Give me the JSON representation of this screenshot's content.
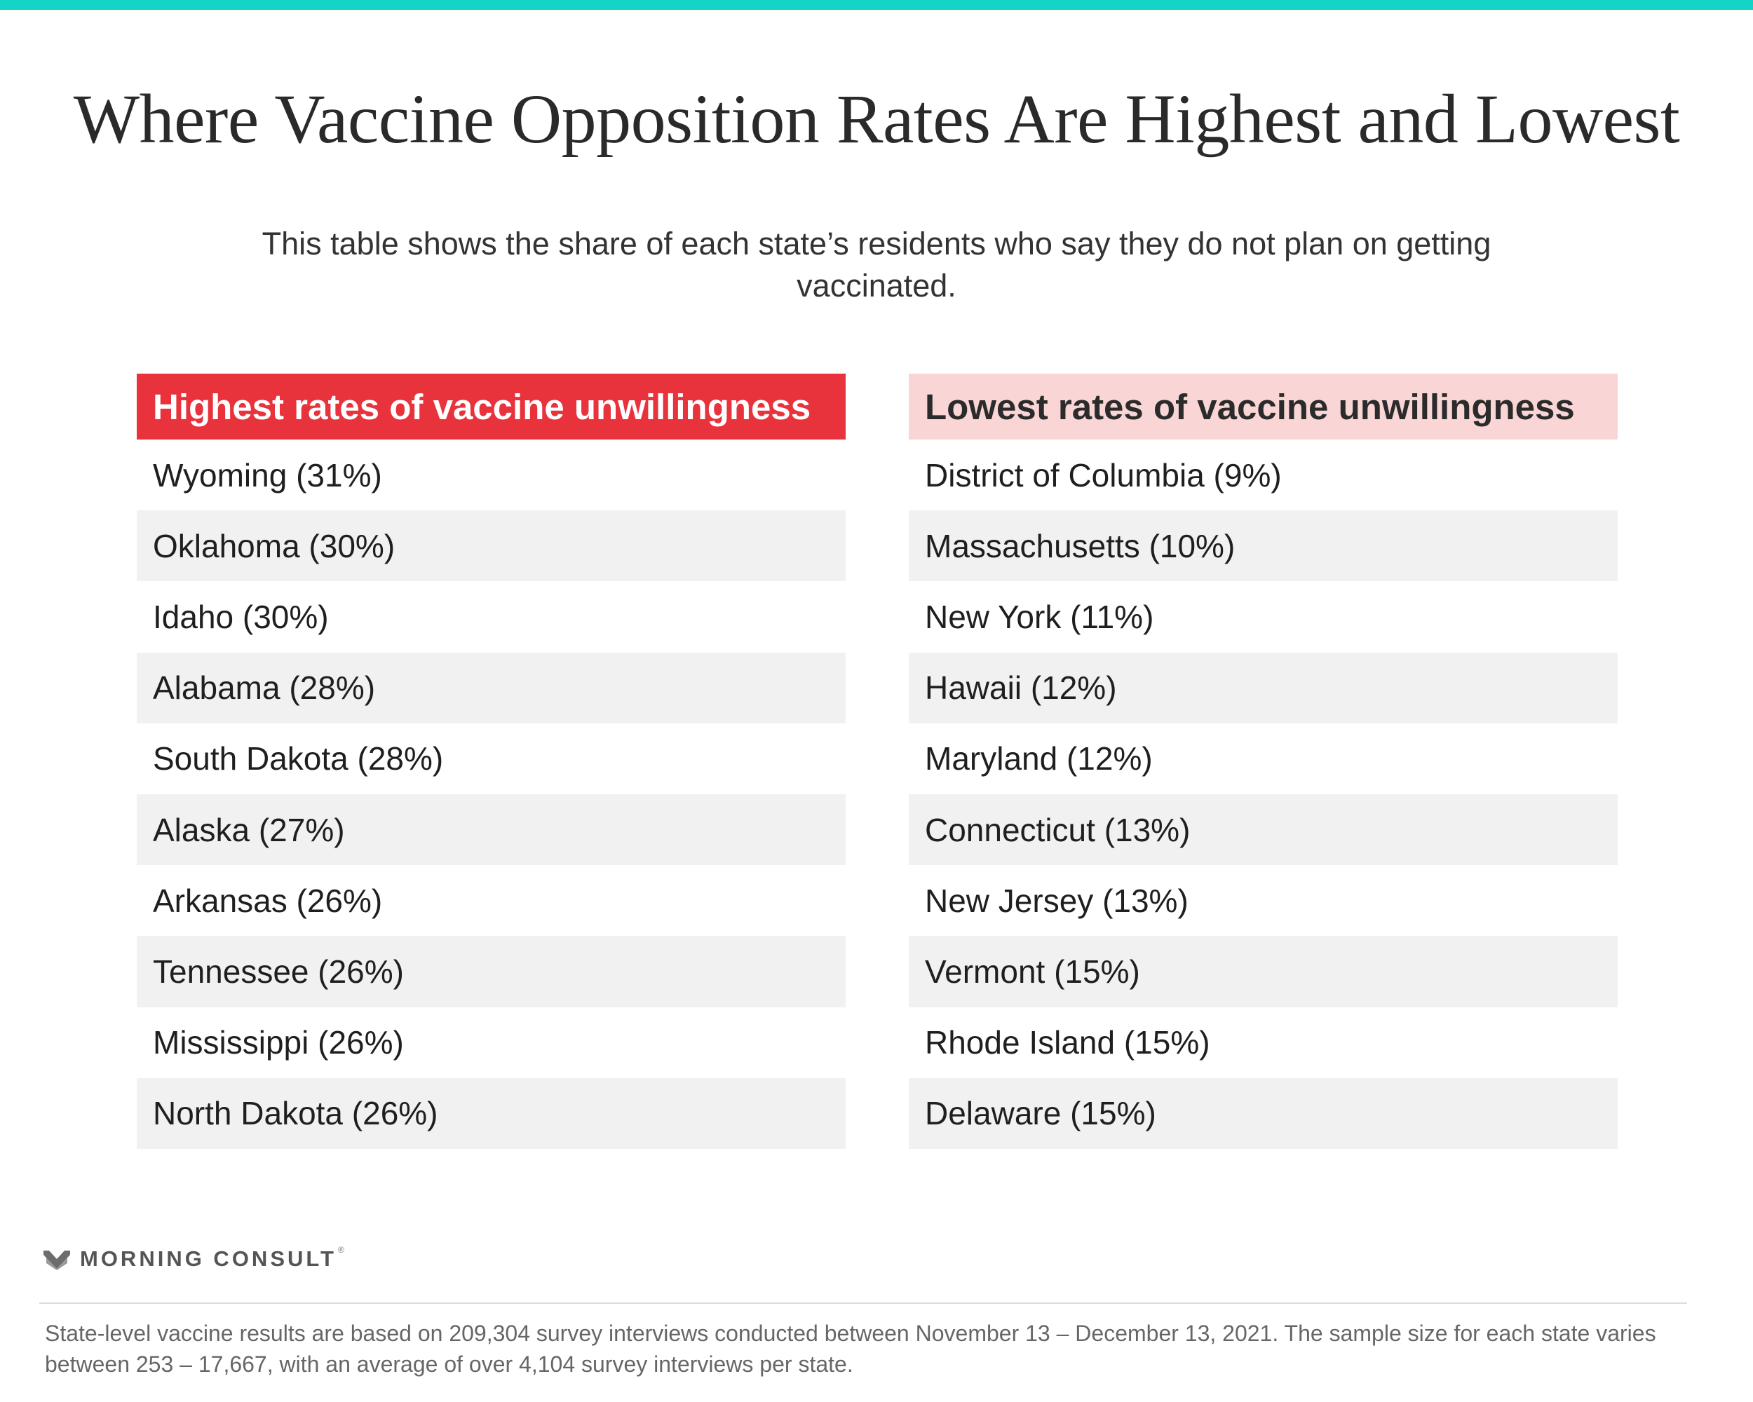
{
  "title": "Where Vaccine Opposition Rates Are Highest and Lowest",
  "subtitle": "This table shows the share of each state’s residents who say they do not plan on getting vaccinated.",
  "colors": {
    "accent_bar": "#14d3c7",
    "high_header": "#e8333d",
    "low_header": "#f9d5d6",
    "row_shade": "#f1f1f1"
  },
  "chart_data": {
    "type": "table",
    "tables": [
      {
        "header": "Highest rates of vaccine unwillingness",
        "rows": [
          {
            "state": "Wyoming",
            "value": 31,
            "label": "Wyoming (31%)"
          },
          {
            "state": "Oklahoma",
            "value": 30,
            "label": "Oklahoma (30%)"
          },
          {
            "state": "Idaho",
            "value": 30,
            "label": "Idaho (30%)"
          },
          {
            "state": "Alabama",
            "value": 28,
            "label": "Alabama (28%)"
          },
          {
            "state": "South Dakota",
            "value": 28,
            "label": "South Dakota (28%)"
          },
          {
            "state": "Alaska",
            "value": 27,
            "label": "Alaska (27%)"
          },
          {
            "state": "Arkansas",
            "value": 26,
            "label": "Arkansas (26%)"
          },
          {
            "state": "Tennessee",
            "value": 26,
            "label": "Tennessee (26%)"
          },
          {
            "state": "Mississippi",
            "value": 26,
            "label": "Mississippi (26%)"
          },
          {
            "state": "North Dakota",
            "value": 26,
            "label": "North Dakota (26%)"
          }
        ]
      },
      {
        "header": "Lowest rates of vaccine unwillingness",
        "rows": [
          {
            "state": "District of Columbia",
            "value": 9,
            "label": "District of Columbia (9%)"
          },
          {
            "state": "Massachusetts",
            "value": 10,
            "label": "Massachusetts (10%)"
          },
          {
            "state": "New York",
            "value": 11,
            "label": "New York (11%)"
          },
          {
            "state": "Hawaii",
            "value": 12,
            "label": "Hawaii (12%)"
          },
          {
            "state": "Maryland",
            "value": 12,
            "label": "Maryland (12%)"
          },
          {
            "state": "Connecticut",
            "value": 13,
            "label": "Connecticut (13%)"
          },
          {
            "state": "New Jersey",
            "value": 13,
            "label": "New Jersey (13%)"
          },
          {
            "state": "Vermont",
            "value": 15,
            "label": "Vermont (15%)"
          },
          {
            "state": "Rhode Island",
            "value": 15,
            "label": "Rhode Island (15%)"
          },
          {
            "state": "Delaware",
            "value": 15,
            "label": "Delaware (15%)"
          }
        ]
      }
    ]
  },
  "brand": {
    "name": "MORNING CONSULT",
    "registered": "®",
    "icon": "morning-consult-logo-icon"
  },
  "footnote": "State-level vaccine results are based on 209,304 survey interviews conducted between November 13 – December 13, 2021. The sample size for each state varies between 253 – 17,667, with an average of over 4,104 survey interviews per state."
}
